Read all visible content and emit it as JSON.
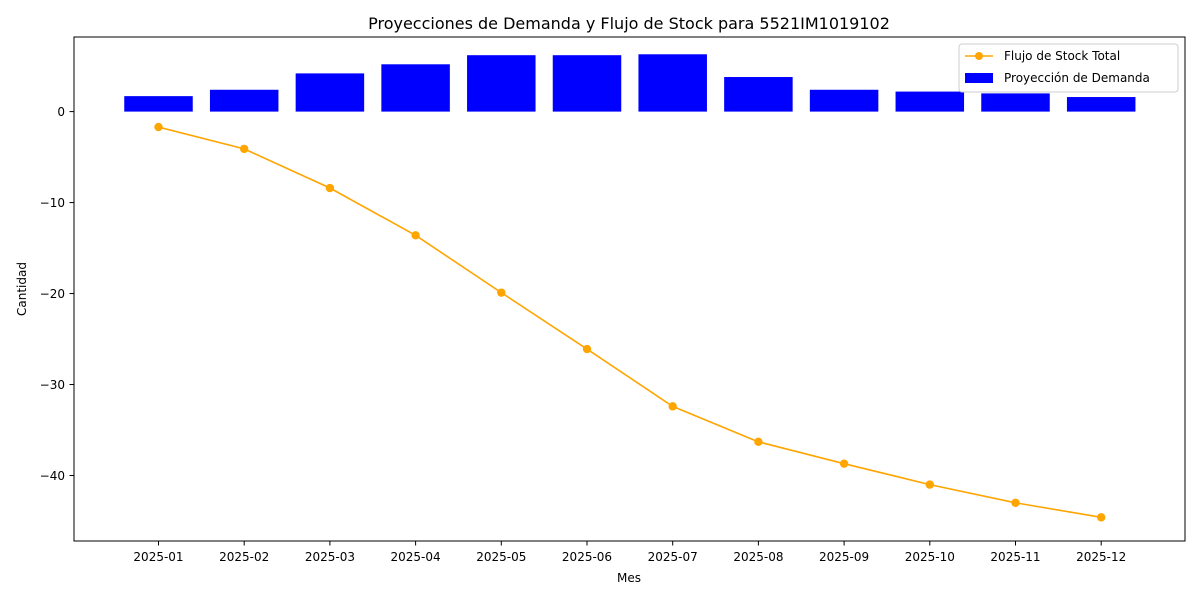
{
  "chart_data": {
    "type": "bar+line",
    "title": "Proyecciones de Demanda y Flujo de Stock para 5521IM1019102",
    "xlabel": "Mes",
    "ylabel": "Cantidad",
    "categories": [
      "2025-01",
      "2025-02",
      "2025-03",
      "2025-04",
      "2025-05",
      "2025-06",
      "2025-07",
      "2025-08",
      "2025-09",
      "2025-10",
      "2025-11",
      "2025-12"
    ],
    "yticks": [
      0,
      -10,
      -20,
      -30,
      -40
    ],
    "ylim": [
      -47.2,
      8.2
    ],
    "grid": false,
    "legend_position": "top-right",
    "series": [
      {
        "name": "Flujo de Stock Total",
        "kind": "line",
        "marker": "circle",
        "color": "#FFA500",
        "values": [
          -1.7,
          -4.1,
          -8.4,
          -13.6,
          -19.9,
          -26.1,
          -32.4,
          -36.3,
          -38.7,
          -41.0,
          -43.0,
          -44.6
        ]
      },
      {
        "name": "Proyección de Demanda",
        "kind": "bar",
        "color": "#0000FF",
        "values": [
          1.7,
          2.4,
          4.2,
          5.2,
          6.2,
          6.2,
          6.3,
          3.8,
          2.4,
          2.2,
          2.0,
          1.6
        ]
      }
    ]
  }
}
